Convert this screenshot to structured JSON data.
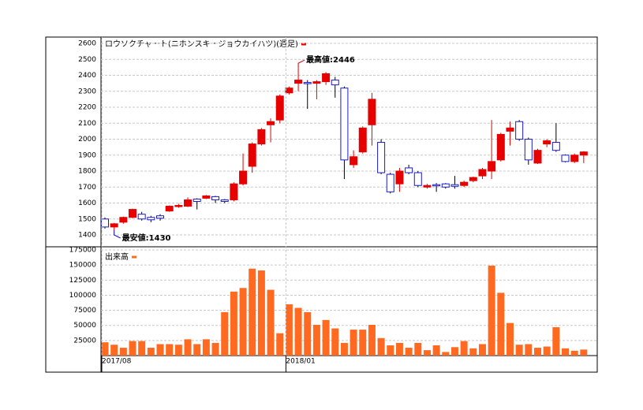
{
  "chart_data": [
    {
      "type": "candlestick",
      "title": "ロウソクチャート(ニホンスキージョウカイハツ)(週足)",
      "up_color": "#e60000",
      "down_color": "#1a1acc",
      "title_marker_color": "#e60000",
      "high_label": "最高値:2446",
      "low_label": "最安値:1430",
      "high_label_color": "#cc0000",
      "low_label_color": "#0000cc",
      "open": [
        1500,
        1450,
        1480,
        1510,
        1530,
        1510,
        1520,
        1550,
        1580,
        1580,
        1625,
        1630,
        1640,
        1620,
        1620,
        1720,
        1830,
        1970,
        2090,
        2120,
        2290,
        2350,
        2355,
        2350,
        2360,
        2370,
        2320,
        1840,
        1920,
        2090,
        1980,
        1780,
        1720,
        1820,
        1790,
        1700,
        1715,
        1720,
        1715,
        1710,
        1740,
        1770,
        1800,
        1870,
        2050,
        2110,
        2000,
        1850,
        1970,
        1980,
        1900,
        1860,
        1900
      ],
      "high": [
        1510,
        1475,
        1515,
        1565,
        1545,
        1520,
        1530,
        1585,
        1595,
        1635,
        1630,
        1650,
        1645,
        1625,
        1730,
        1910,
        1980,
        2070,
        2130,
        2280,
        2330,
        2446,
        2370,
        2370,
        2420,
        2390,
        2330,
        1930,
        2080,
        2290,
        2000,
        1790,
        1820,
        1840,
        1800,
        1720,
        1725,
        1725,
        1770,
        1740,
        1765,
        1820,
        2120,
        2040,
        2110,
        2120,
        2010,
        1940,
        2000,
        2100,
        1905,
        1910,
        1925
      ],
      "low": [
        1440,
        1430,
        1470,
        1505,
        1490,
        1480,
        1490,
        1545,
        1570,
        1575,
        1560,
        1625,
        1600,
        1600,
        1610,
        1710,
        1790,
        1960,
        1980,
        2100,
        2280,
        2300,
        2190,
        2250,
        2340,
        2260,
        1750,
        1820,
        1910,
        1960,
        1780,
        1660,
        1670,
        1780,
        1700,
        1690,
        1670,
        1690,
        1690,
        1700,
        1730,
        1750,
        1750,
        1860,
        1960,
        1990,
        1840,
        1845,
        1950,
        1920,
        1855,
        1850,
        1850
      ],
      "close": [
        1450,
        1470,
        1510,
        1560,
        1500,
        1495,
        1505,
        1580,
        1585,
        1620,
        1610,
        1645,
        1620,
        1610,
        1720,
        1800,
        1970,
        2060,
        2110,
        2270,
        2320,
        2370,
        2350,
        2360,
        2410,
        2340,
        1870,
        1890,
        2070,
        2250,
        1790,
        1670,
        1800,
        1790,
        1710,
        1710,
        1710,
        1700,
        1705,
        1730,
        1760,
        1810,
        1860,
        2030,
        2070,
        2000,
        1870,
        1930,
        1990,
        1930,
        1860,
        1900,
        1920
      ],
      "ylim": [
        1400,
        2600
      ],
      "yticks": [
        1400,
        1500,
        1600,
        1700,
        1800,
        1900,
        2000,
        2100,
        2200,
        2300,
        2400,
        2500,
        2600
      ],
      "grid": true
    },
    {
      "type": "bar",
      "title": "出来高",
      "color": "#ff6a20",
      "title_marker_color": "#ff6a20",
      "categories": [
        "2017/08",
        null,
        null,
        null,
        null,
        null,
        null,
        null,
        null,
        null,
        null,
        null,
        null,
        null,
        null,
        null,
        null,
        null,
        null,
        null,
        "2018/01",
        null,
        null,
        null,
        null,
        null,
        null,
        null,
        null,
        null,
        null,
        null,
        null,
        null,
        null,
        null,
        null,
        null,
        null,
        null,
        null,
        null,
        null,
        null,
        null,
        null,
        null,
        null,
        null,
        null,
        null,
        null,
        null
      ],
      "values": [
        22000,
        18000,
        13000,
        24000,
        24000,
        13000,
        19000,
        19000,
        18000,
        27000,
        19000,
        27000,
        21000,
        72000,
        106000,
        112000,
        144000,
        141000,
        109000,
        37000,
        85000,
        79000,
        72000,
        51000,
        59000,
        45000,
        21000,
        43000,
        43000,
        51000,
        29000,
        17000,
        21000,
        13000,
        21000,
        9000,
        17000,
        6000,
        14000,
        24000,
        12000,
        19000,
        149000,
        104000,
        54000,
        18000,
        19000,
        13000,
        15000,
        47000,
        12000,
        8000,
        10000
      ],
      "ylim": [
        0,
        175000
      ],
      "yticks": [
        25000,
        50000,
        75000,
        100000,
        125000,
        150000,
        175000
      ],
      "grid": true
    }
  ]
}
